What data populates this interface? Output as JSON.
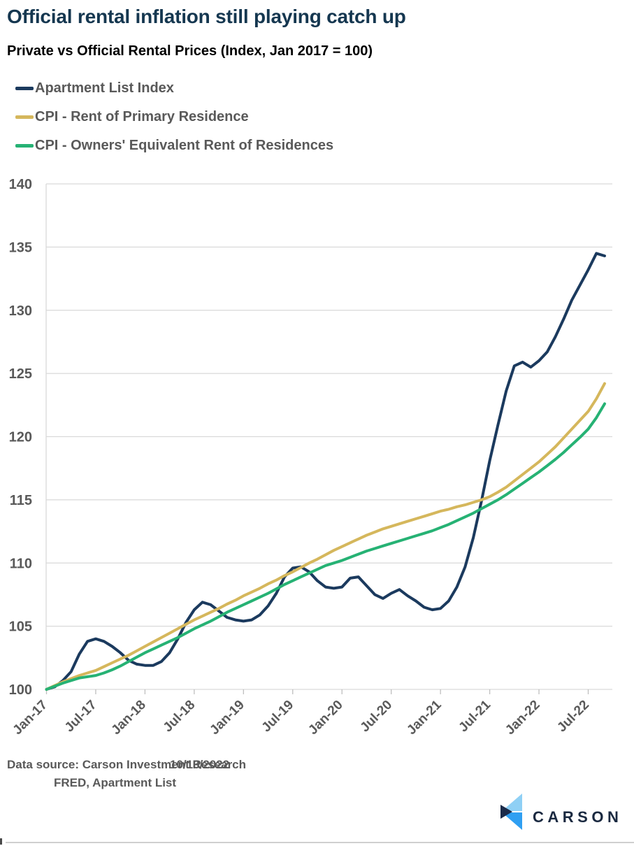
{
  "header": {
    "title": "Official rental inflation still playing catch up",
    "subtitle": "Private vs Official Rental Prices (Index, Jan 2017 = 100)"
  },
  "footer": {
    "source_line1": "Data source: Carson Investment Research",
    "date": "10/13/2022",
    "source_line2": "FRED, Apartment List"
  },
  "logo": {
    "text": "CARSON"
  },
  "palette": {
    "title_navy": "#153750",
    "label_gray": "#595959",
    "grid_gray": "#d9d9d9",
    "tick_gray": "#bfbfbf",
    "logo_light_blue": "#8fd0f5",
    "logo_blue": "#2f9ff2",
    "logo_navy": "#1c2b4a"
  },
  "chart_data": {
    "type": "line",
    "title": "Official rental inflation still playing catch up",
    "subtitle": "Private vs Official Rental Prices (Index, Jan 2017 = 100)",
    "xlabel": "",
    "ylabel": "",
    "ylim": [
      100,
      140
    ],
    "y_ticks": [
      100,
      105,
      110,
      115,
      120,
      125,
      130,
      135,
      140
    ],
    "grid": "horizontal",
    "legend_position": "top-left",
    "x_tick_labels": [
      "Jan-17",
      "Jul-17",
      "Jan-18",
      "Jul-18",
      "Jan-19",
      "Jul-19",
      "Jan-20",
      "Jul-20",
      "Jan-21",
      "Jul-21",
      "Jan-22",
      "Jul-22"
    ],
    "months": [
      "Jan-17",
      "Feb-17",
      "Mar-17",
      "Apr-17",
      "May-17",
      "Jun-17",
      "Jul-17",
      "Aug-17",
      "Sep-17",
      "Oct-17",
      "Nov-17",
      "Dec-17",
      "Jan-18",
      "Feb-18",
      "Mar-18",
      "Apr-18",
      "May-18",
      "Jun-18",
      "Jul-18",
      "Aug-18",
      "Sep-18",
      "Oct-18",
      "Nov-18",
      "Dec-18",
      "Jan-19",
      "Feb-19",
      "Mar-19",
      "Apr-19",
      "May-19",
      "Jun-19",
      "Jul-19",
      "Aug-19",
      "Sep-19",
      "Oct-19",
      "Nov-19",
      "Dec-19",
      "Jan-20",
      "Feb-20",
      "Mar-20",
      "Apr-20",
      "May-20",
      "Jun-20",
      "Jul-20",
      "Aug-20",
      "Sep-20",
      "Oct-20",
      "Nov-20",
      "Dec-20",
      "Jan-21",
      "Feb-21",
      "Mar-21",
      "Apr-21",
      "May-21",
      "Jun-21",
      "Jul-21",
      "Aug-21",
      "Sep-21",
      "Oct-21",
      "Nov-21",
      "Dec-21",
      "Jan-22",
      "Feb-22",
      "Mar-22",
      "Apr-22",
      "May-22",
      "Jun-22",
      "Jul-22",
      "Aug-22",
      "Sep-22"
    ],
    "series": [
      {
        "name": "Apartment List Index",
        "color": "#1b3a5e",
        "values": [
          100.0,
          100.2,
          100.7,
          101.4,
          102.8,
          103.8,
          104.0,
          103.8,
          103.4,
          102.9,
          102.3,
          102.0,
          101.9,
          101.9,
          102.2,
          102.9,
          104.0,
          105.3,
          106.3,
          106.9,
          106.7,
          106.2,
          105.7,
          105.5,
          105.4,
          105.5,
          105.9,
          106.6,
          107.6,
          108.9,
          109.6,
          109.7,
          109.3,
          108.6,
          108.1,
          108.0,
          108.1,
          108.8,
          108.9,
          108.2,
          107.5,
          107.2,
          107.6,
          107.9,
          107.4,
          107.0,
          106.5,
          106.3,
          106.4,
          107.0,
          108.1,
          109.7,
          112.0,
          114.9,
          118.1,
          120.9,
          123.6,
          125.6,
          125.9,
          125.5,
          126.0,
          126.7,
          127.9,
          129.3,
          130.8,
          132.0,
          133.2,
          134.5,
          134.3
        ]
      },
      {
        "name": "CPI - Rent of Primary Residence",
        "color": "#d5b75c",
        "values": [
          100.0,
          100.3,
          100.6,
          100.85,
          101.1,
          101.3,
          101.5,
          101.8,
          102.1,
          102.4,
          102.7,
          103.05,
          103.4,
          103.75,
          104.1,
          104.45,
          104.8,
          105.15,
          105.5,
          105.8,
          106.1,
          106.4,
          106.75,
          107.05,
          107.4,
          107.7,
          108.0,
          108.35,
          108.65,
          109.0,
          109.3,
          109.65,
          110.0,
          110.3,
          110.65,
          111.0,
          111.3,
          111.6,
          111.9,
          112.2,
          112.45,
          112.7,
          112.9,
          113.1,
          113.3,
          113.5,
          113.7,
          113.9,
          114.1,
          114.25,
          114.45,
          114.6,
          114.8,
          115.0,
          115.25,
          115.6,
          116.0,
          116.5,
          117.0,
          117.5,
          118.0,
          118.6,
          119.2,
          119.9,
          120.6,
          121.3,
          122.0,
          123.0,
          124.2
        ]
      },
      {
        "name": "CPI - Owners' Equivalent Rent of Residences",
        "color": "#26b274",
        "values": [
          100.0,
          100.25,
          100.5,
          100.7,
          100.9,
          101.0,
          101.1,
          101.3,
          101.55,
          101.85,
          102.2,
          102.55,
          102.9,
          103.2,
          103.5,
          103.8,
          104.1,
          104.45,
          104.8,
          105.1,
          105.4,
          105.75,
          106.1,
          106.4,
          106.7,
          107.0,
          107.3,
          107.6,
          107.95,
          108.3,
          108.6,
          108.9,
          109.2,
          109.5,
          109.8,
          110.0,
          110.2,
          110.45,
          110.7,
          110.95,
          111.15,
          111.35,
          111.55,
          111.75,
          111.95,
          112.15,
          112.35,
          112.55,
          112.8,
          113.05,
          113.35,
          113.65,
          113.95,
          114.3,
          114.65,
          115.0,
          115.4,
          115.85,
          116.3,
          116.75,
          117.2,
          117.7,
          118.2,
          118.75,
          119.35,
          119.95,
          120.6,
          121.5,
          122.6
        ]
      }
    ]
  }
}
